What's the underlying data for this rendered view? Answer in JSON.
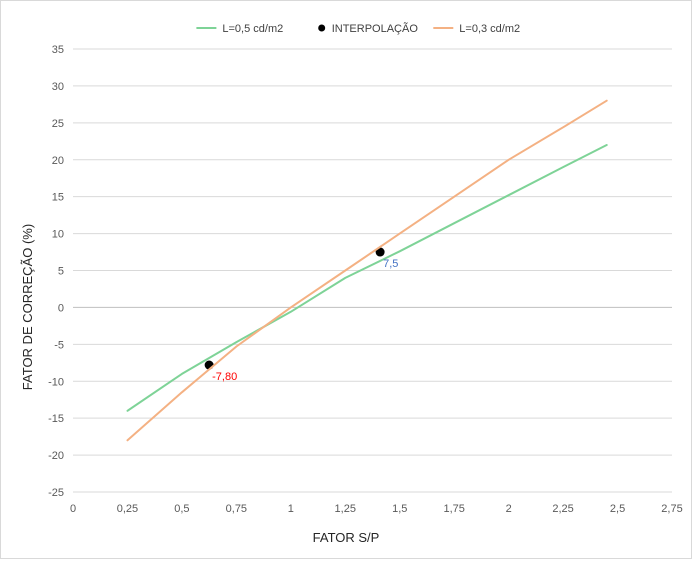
{
  "chart_data": {
    "type": "line",
    "xlabel": "FATOR S/P",
    "ylabel": "FATOR DE CORREÇÃO (%)",
    "xlim": [
      0,
      2.75
    ],
    "ylim": [
      -25,
      35
    ],
    "x_ticks": [
      "0",
      "0,25",
      "0,5",
      "0,75",
      "1",
      "1,25",
      "1,5",
      "1,75",
      "2",
      "2,25",
      "2,5",
      "2,75"
    ],
    "y_ticks": [
      "35",
      "30",
      "25",
      "20",
      "15",
      "10",
      "5",
      "0",
      "-5",
      "-10",
      "-15",
      "-20",
      "-25"
    ],
    "grid": true,
    "legend_position": "top",
    "series": [
      {
        "name": "L=0,5 cd/m2",
        "color": "#7ed397",
        "marker": "line",
        "x": [
          0.25,
          0.5,
          0.75,
          1.0,
          1.25,
          1.5,
          1.75,
          2.0,
          2.25,
          2.45
        ],
        "y": [
          -14,
          -9,
          -4.7,
          -0.6,
          4,
          7.6,
          11.4,
          15.2,
          19,
          22
        ]
      },
      {
        "name": "INTERPOLAÇÃO",
        "color": "#000000",
        "marker": "point",
        "x": [
          0.625,
          1.41
        ],
        "y": [
          -7.8,
          7.5
        ],
        "labels": [
          "-7,80",
          "7,5"
        ],
        "label_colors": [
          "#ff0000",
          "#4472c4"
        ]
      },
      {
        "name": "L=0,3 cd/m2",
        "color": "#f4b183",
        "marker": "line",
        "x": [
          0.25,
          0.5,
          0.75,
          1.0,
          1.25,
          1.5,
          1.75,
          2.0,
          2.25,
          2.45
        ],
        "y": [
          -18,
          -11.5,
          -5.3,
          0,
          5,
          10,
          15,
          20,
          24.4,
          28
        ]
      }
    ]
  }
}
